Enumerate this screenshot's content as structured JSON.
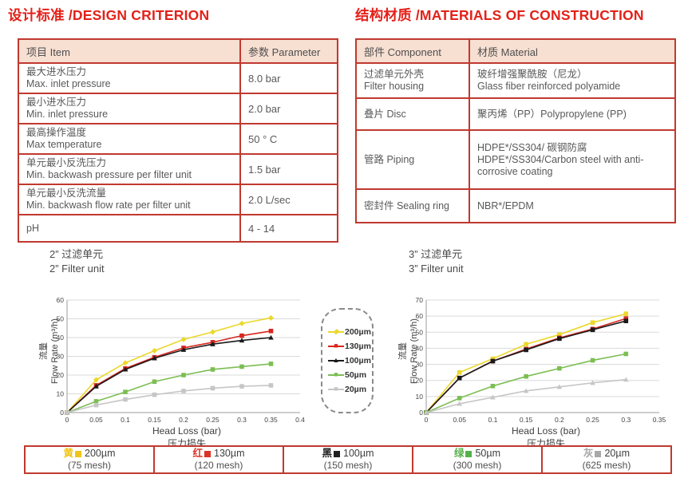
{
  "design": {
    "title": "设计标准 /DESIGN CRITERION",
    "table": {
      "col_item": "项目 Item",
      "col_param": "参数 Parameter",
      "rows": [
        {
          "zh": "最大进水压力",
          "en": "Max. inlet pressure",
          "value": "8.0 bar"
        },
        {
          "zh": "最小进水压力",
          "en": "Min. inlet pressure",
          "value": "2.0 bar"
        },
        {
          "zh": "最高操作温度",
          "en": "Max temperature",
          "value": "50 ° C"
        },
        {
          "zh": "单元最小反洗压力",
          "en": "Min. backwash pressure per filter unit",
          "value": "1.5 bar"
        },
        {
          "zh": "单元最小反洗流量",
          "en": "Min. backwash flow rate per filter unit",
          "value": "2.0 L/sec"
        },
        {
          "zh": "pH",
          "en": "",
          "value": "4 - 14"
        }
      ]
    }
  },
  "materials": {
    "title": "结构材质 /MATERIALS OF CONSTRUCTION",
    "table": {
      "col_component": "部件 Component",
      "col_material": "材质 Material",
      "rows": [
        {
          "component_zh": "过滤单元外壳",
          "component_en": "Filter housing",
          "material_zh": "玻纤增强聚酰胺（尼龙）",
          "material_en": "Glass fiber reinforced polyamide"
        },
        {
          "component_zh": "叠片 Disc",
          "component_en": "",
          "material_zh": "聚丙烯（PP）Polypropylene (PP)",
          "material_en": ""
        },
        {
          "component_zh": "管路 Piping",
          "component_en": "",
          "material_zh": "HDPE*/SS304/ 碳钢防腐",
          "material_en": "HDPE*/SS304/Carbon steel with anti-corrosive coating"
        },
        {
          "component_zh": "密封件 Sealing ring",
          "component_en": "",
          "material_zh": "NBR*/EPDM",
          "material_en": ""
        }
      ]
    }
  },
  "chart_data": [
    {
      "type": "line",
      "title_zh": "2” 过滤单元",
      "title_en": "2” Filter unit",
      "ylabel_zh": "流量",
      "ylabel": "Flow Rate (m³/h)",
      "xlabel": "Head Loss (bar)",
      "xlabel_zh": "压力损失",
      "xlim": [
        0,
        0.4
      ],
      "ylim": [
        0,
        60
      ],
      "xticks": [
        0,
        0.05,
        0.1,
        0.15,
        0.2,
        0.25,
        0.3,
        0.35,
        0.4
      ],
      "yticks": [
        0,
        10,
        20,
        30,
        40,
        50,
        60
      ],
      "grid": "horizontal",
      "x": [
        0,
        0.05,
        0.1,
        0.15,
        0.2,
        0.25,
        0.3,
        0.35
      ],
      "series": [
        {
          "name": "200µm",
          "color": "#EBD82B",
          "marker": "diamond",
          "values": [
            0,
            17.5,
            26.5,
            33,
            39,
            43,
            47.5,
            50.5
          ]
        },
        {
          "name": "130µm",
          "color": "#D8261E",
          "marker": "square",
          "values": [
            0,
            14.5,
            23.5,
            29.5,
            34.5,
            37.5,
            41,
            43.5
          ]
        },
        {
          "name": "100µm",
          "color": "#1A1A1A",
          "marker": "triangle",
          "values": [
            0,
            14,
            23,
            29,
            33.5,
            36.5,
            38.5,
            40
          ]
        },
        {
          "name": "50µm",
          "color": "#7CBE52",
          "marker": "square",
          "values": [
            0,
            6,
            11,
            16.5,
            20,
            23,
            24.5,
            26
          ]
        },
        {
          "name": "20µm",
          "color": "#C6C6C6",
          "marker": "square",
          "values": [
            0,
            4,
            7,
            9.5,
            11.5,
            13,
            14,
            14.5
          ]
        }
      ]
    },
    {
      "type": "line",
      "title_zh": "3” 过滤单元",
      "title_en": "3” Filter unit",
      "ylabel_zh": "流量",
      "ylabel": "Flow Rate (m³/h)",
      "xlabel": "Head Loss (bar)",
      "xlabel_zh": "压力损失",
      "xlim": [
        0,
        0.35
      ],
      "ylim": [
        0,
        70
      ],
      "xticks": [
        0,
        0.05,
        0.1,
        0.15,
        0.2,
        0.25,
        0.3,
        0.35
      ],
      "yticks": [
        0,
        10,
        20,
        30,
        40,
        50,
        60,
        70
      ],
      "grid": "horizontal",
      "x": [
        0,
        0.05,
        0.1,
        0.15,
        0.2,
        0.25,
        0.3
      ],
      "series": [
        {
          "name": "200µm",
          "color": "#EBD82B",
          "marker": "square",
          "values": [
            0,
            25,
            33.5,
            42.5,
            48.5,
            56,
            61.5
          ]
        },
        {
          "name": "130µm",
          "color": "#D8261E",
          "marker": "square",
          "values": [
            0,
            21.5,
            32,
            39.5,
            46.5,
            52,
            58.5
          ]
        },
        {
          "name": "100µm",
          "color": "#1A1A1A",
          "marker": "square",
          "values": [
            0,
            21.5,
            32,
            39,
            46,
            51.5,
            57
          ]
        },
        {
          "name": "50µm",
          "color": "#7CBE52",
          "marker": "square",
          "values": [
            0,
            9,
            16.5,
            22.5,
            27.5,
            32.5,
            36.5
          ]
        },
        {
          "name": "20µm",
          "color": "#C6C6C6",
          "marker": "triangle",
          "values": [
            0,
            5.5,
            9.5,
            13.5,
            16,
            18.5,
            20.5
          ]
        }
      ]
    }
  ],
  "mid_legend": {
    "items": [
      {
        "label": "200µm",
        "color": "#EBD82B",
        "glyph": "◆"
      },
      {
        "label": "130µm",
        "color": "#D8261E",
        "glyph": "■"
      },
      {
        "label": "100µm",
        "color": "#1A1A1A",
        "glyph": "▲"
      },
      {
        "label": "50µm",
        "color": "#7CBE52",
        "glyph": "■"
      },
      {
        "label": "20µm",
        "color": "#C6C6C6",
        "glyph": "■"
      }
    ]
  },
  "bottom_legend": {
    "items": [
      {
        "name_zh": "黄",
        "size": "200µm",
        "mesh": "(75 mesh)",
        "color": "#F0C419"
      },
      {
        "name_zh": "红",
        "size": "130µm",
        "mesh": "(120 mesh)",
        "color": "#DD3226"
      },
      {
        "name_zh": "黑",
        "size": "100µm",
        "mesh": "(150 mesh)",
        "color": "#1F1F1F"
      },
      {
        "name_zh": "绿",
        "size": "50µm",
        "mesh": "(300 mesh)",
        "color": "#55B04B"
      },
      {
        "name_zh": "灰",
        "size": "20µm",
        "mesh": "(625 mesh)",
        "color": "#A8A8A8"
      }
    ]
  },
  "colors": {
    "accent_red": "#E32119",
    "table_border": "#C0392F",
    "header_fill": "#F7DFD2"
  }
}
